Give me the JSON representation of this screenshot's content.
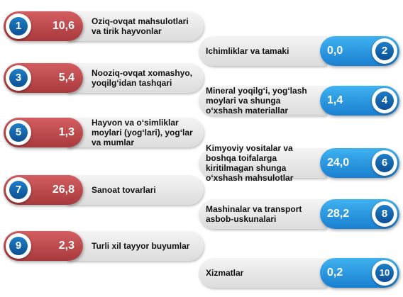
{
  "items": [
    {
      "number": "1",
      "value": "10,6",
      "label": [
        "Oziq-ovqat mahsulotlari",
        "va tirik hayvonlar"
      ]
    },
    {
      "number": "2",
      "value": "0,0",
      "label": [
        "Ichimliklar va tamaki"
      ]
    },
    {
      "number": "3",
      "value": "5,4",
      "label": [
        "Nooziq-ovqat xomashyo,",
        "yoqilg‘idan tashqari"
      ]
    },
    {
      "number": "4",
      "value": "1,4",
      "label": [
        "Mineral yoqilg‘i, yog‘lash",
        "moylari va shunga",
        "o‘xshash materiallar"
      ]
    },
    {
      "number": "5",
      "value": "1,3",
      "label": [
        "Hayvon va o‘simliklar",
        "moylari (yog‘lari), yog‘lar",
        "va mumlar"
      ]
    },
    {
      "number": "6",
      "value": "24,0",
      "label": [
        "Kimyoviy vositalar va",
        "boshqa toifalarga",
        "kiritilmagan shunga",
        "o‘xshash mahsulotlar"
      ]
    },
    {
      "number": "7",
      "value": "26,8",
      "label": [
        "Sanoat tovarlari"
      ]
    },
    {
      "number": "8",
      "value": "28,2",
      "label": [
        "Mashinalar va transport",
        "asbob-uskunalari"
      ]
    },
    {
      "number": "9",
      "value": "2,3",
      "label": [
        "Turli xil tayyor buyumlar"
      ]
    },
    {
      "number": "10",
      "value": "0,2",
      "label": [
        "Xizmatlar"
      ]
    }
  ]
}
